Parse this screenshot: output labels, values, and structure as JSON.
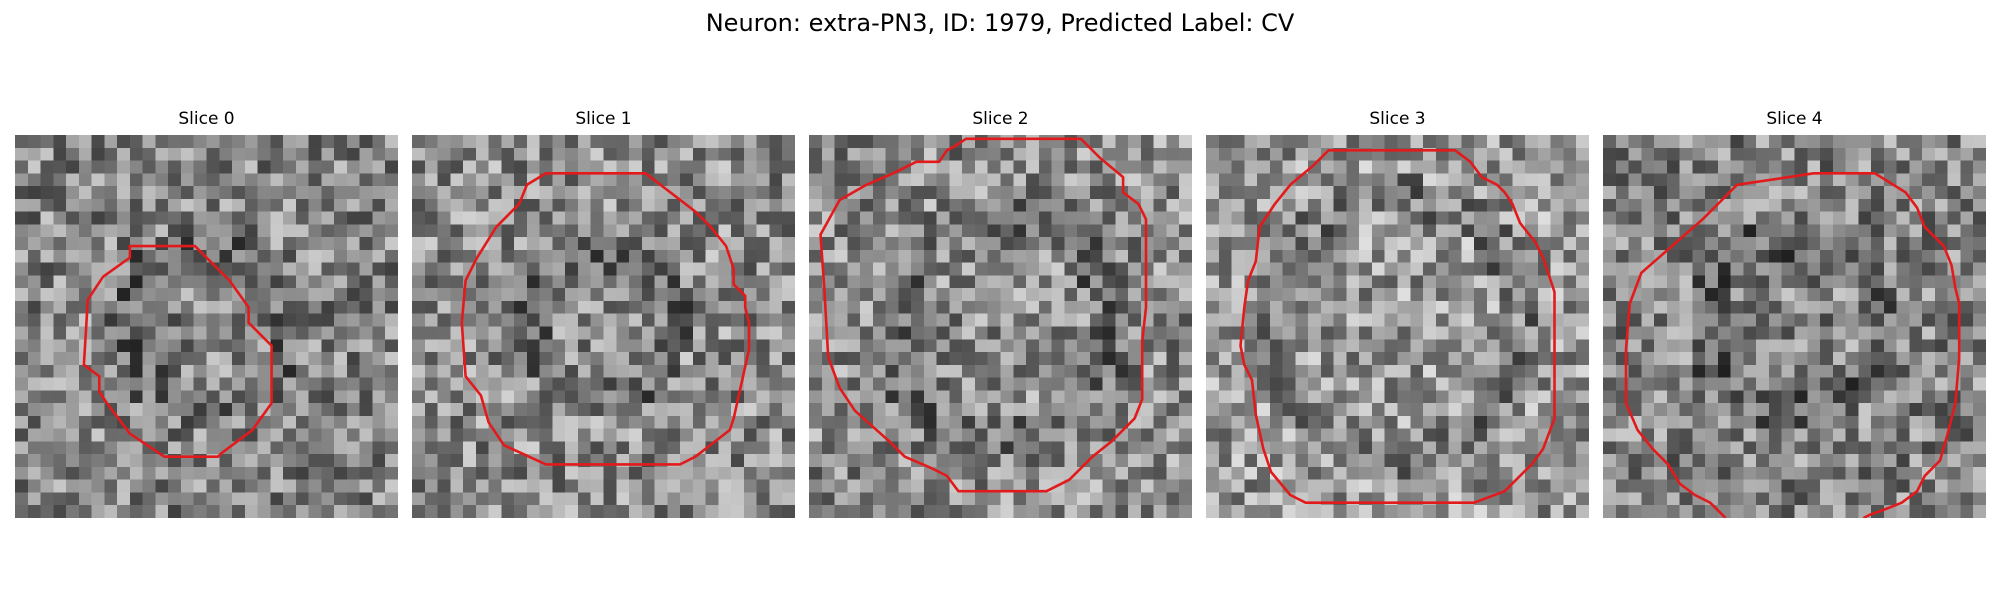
{
  "figure": {
    "title": "Neuron: extra-PN3, ID: 1979, Predicted Label: CV"
  },
  "contour_color": "#e31a1c",
  "image_colormap": "grayscale",
  "slices": [
    {
      "title": "Slice 0",
      "base": 0.52,
      "ring": 0.42,
      "noise_seed": 11,
      "contour": [
        [
          0.3,
          0.29
        ],
        [
          0.47,
          0.29
        ],
        [
          0.56,
          0.38
        ],
        [
          0.61,
          0.45
        ],
        [
          0.61,
          0.49
        ],
        [
          0.67,
          0.55
        ],
        [
          0.67,
          0.7
        ],
        [
          0.62,
          0.77
        ],
        [
          0.54,
          0.83
        ],
        [
          0.53,
          0.84
        ],
        [
          0.39,
          0.84
        ],
        [
          0.3,
          0.78
        ],
        [
          0.24,
          0.7
        ],
        [
          0.22,
          0.67
        ],
        [
          0.22,
          0.63
        ],
        [
          0.18,
          0.6
        ],
        [
          0.19,
          0.43
        ],
        [
          0.23,
          0.37
        ],
        [
          0.3,
          0.32
        ]
      ]
    },
    {
      "title": "Slice 1",
      "base": 0.55,
      "ring": 0.36,
      "noise_seed": 23,
      "contour": [
        [
          0.35,
          0.1
        ],
        [
          0.61,
          0.1
        ],
        [
          0.74,
          0.2
        ],
        [
          0.78,
          0.24
        ],
        [
          0.82,
          0.29
        ],
        [
          0.84,
          0.35
        ],
        [
          0.84,
          0.39
        ],
        [
          0.87,
          0.42
        ],
        [
          0.87,
          0.45
        ],
        [
          0.88,
          0.49
        ],
        [
          0.88,
          0.56
        ],
        [
          0.84,
          0.74
        ],
        [
          0.83,
          0.77
        ],
        [
          0.74,
          0.84
        ],
        [
          0.7,
          0.86
        ],
        [
          0.35,
          0.86
        ],
        [
          0.24,
          0.81
        ],
        [
          0.2,
          0.75
        ],
        [
          0.18,
          0.68
        ],
        [
          0.14,
          0.63
        ],
        [
          0.13,
          0.49
        ],
        [
          0.14,
          0.38
        ],
        [
          0.17,
          0.32
        ],
        [
          0.22,
          0.24
        ],
        [
          0.28,
          0.18
        ],
        [
          0.3,
          0.13
        ]
      ]
    },
    {
      "title": "Slice 2",
      "base": 0.55,
      "ring": 0.58,
      "noise_seed": 37,
      "contour": [
        [
          0.22,
          0.1
        ],
        [
          0.28,
          0.07
        ],
        [
          0.34,
          0.07
        ],
        [
          0.36,
          0.04
        ],
        [
          0.38,
          0.03
        ],
        [
          0.41,
          0.01
        ],
        [
          0.71,
          0.01
        ],
        [
          0.76,
          0.06
        ],
        [
          0.82,
          0.11
        ],
        [
          0.82,
          0.15
        ],
        [
          0.86,
          0.18
        ],
        [
          0.88,
          0.22
        ],
        [
          0.88,
          0.45
        ],
        [
          0.87,
          0.54
        ],
        [
          0.87,
          0.69
        ],
        [
          0.85,
          0.74
        ],
        [
          0.79,
          0.8
        ],
        [
          0.74,
          0.84
        ],
        [
          0.68,
          0.9
        ],
        [
          0.62,
          0.93
        ],
        [
          0.39,
          0.93
        ],
        [
          0.36,
          0.89
        ],
        [
          0.32,
          0.87
        ],
        [
          0.25,
          0.84
        ],
        [
          0.21,
          0.8
        ],
        [
          0.12,
          0.72
        ],
        [
          0.08,
          0.66
        ],
        [
          0.05,
          0.58
        ],
        [
          0.04,
          0.4
        ],
        [
          0.03,
          0.26
        ],
        [
          0.08,
          0.17
        ],
        [
          0.15,
          0.13
        ]
      ]
    },
    {
      "title": "Slice 3",
      "base": 0.6,
      "ring": 0.68,
      "noise_seed": 53,
      "contour": [
        [
          0.32,
          0.04
        ],
        [
          0.65,
          0.04
        ],
        [
          0.69,
          0.07
        ],
        [
          0.72,
          0.11
        ],
        [
          0.76,
          0.13
        ],
        [
          0.78,
          0.15
        ],
        [
          0.8,
          0.18
        ],
        [
          0.82,
          0.23
        ],
        [
          0.86,
          0.28
        ],
        [
          0.88,
          0.32
        ],
        [
          0.9,
          0.38
        ],
        [
          0.91,
          0.41
        ],
        [
          0.91,
          0.74
        ],
        [
          0.88,
          0.82
        ],
        [
          0.85,
          0.86
        ],
        [
          0.81,
          0.9
        ],
        [
          0.78,
          0.93
        ],
        [
          0.7,
          0.96
        ],
        [
          0.26,
          0.96
        ],
        [
          0.22,
          0.94
        ],
        [
          0.17,
          0.88
        ],
        [
          0.15,
          0.82
        ],
        [
          0.13,
          0.73
        ],
        [
          0.12,
          0.64
        ],
        [
          0.1,
          0.6
        ],
        [
          0.09,
          0.55
        ],
        [
          0.1,
          0.45
        ],
        [
          0.11,
          0.38
        ],
        [
          0.13,
          0.33
        ],
        [
          0.14,
          0.24
        ],
        [
          0.18,
          0.18
        ],
        [
          0.22,
          0.13
        ],
        [
          0.28,
          0.08
        ]
      ]
    },
    {
      "title": "Slice 4",
      "base": 0.52,
      "ring": 0.46,
      "noise_seed": 71,
      "contour": [
        [
          0.32,
          0.16
        ],
        [
          0.35,
          0.13
        ],
        [
          0.55,
          0.1
        ],
        [
          0.71,
          0.1
        ],
        [
          0.79,
          0.15
        ],
        [
          0.82,
          0.19
        ],
        [
          0.84,
          0.24
        ],
        [
          0.89,
          0.29
        ],
        [
          0.91,
          0.34
        ],
        [
          0.92,
          0.4
        ],
        [
          0.93,
          0.44
        ],
        [
          0.93,
          0.58
        ],
        [
          0.92,
          0.7
        ],
        [
          0.9,
          0.78
        ],
        [
          0.88,
          0.85
        ],
        [
          0.84,
          0.89
        ],
        [
          0.82,
          0.93
        ],
        [
          0.78,
          0.96
        ],
        [
          0.73,
          0.98
        ],
        [
          0.7,
          0.99
        ],
        [
          0.68,
          1.0
        ]
      ]
    }
  ]
}
